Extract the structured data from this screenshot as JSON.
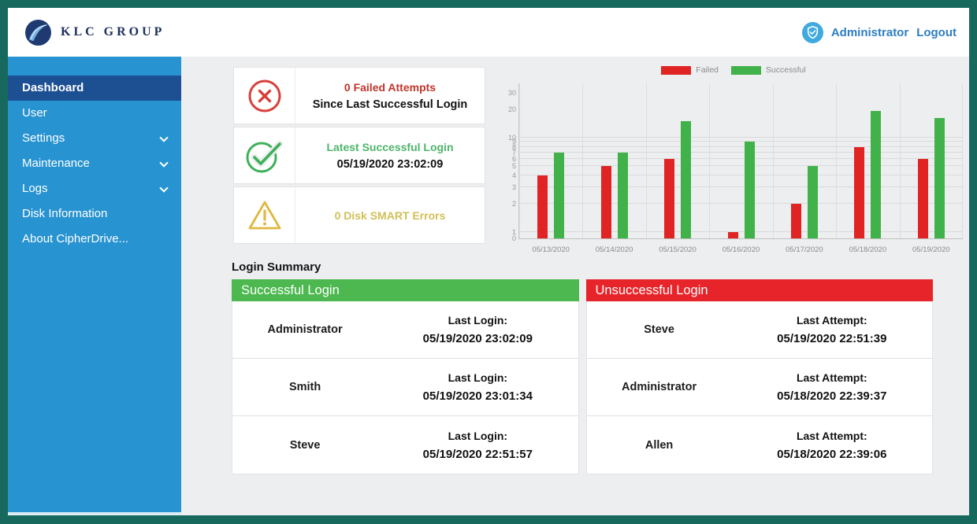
{
  "header": {
    "brand": "KLC GROUP",
    "user_label": "Administrator",
    "logout_label": "Logout"
  },
  "sidebar": {
    "active_item": "Dashboard",
    "items": [
      {
        "label": "Dashboard",
        "expandable": false
      },
      {
        "label": "User",
        "expandable": false
      },
      {
        "label": "Settings",
        "expandable": true
      },
      {
        "label": "Maintenance",
        "expandable": true
      },
      {
        "label": "Logs",
        "expandable": true
      },
      {
        "label": "Disk Information",
        "expandable": false
      },
      {
        "label": "About CipherDrive...",
        "expandable": false
      }
    ]
  },
  "status_cards": [
    {
      "icon": "failed-attempts-icon",
      "line1": "0 Failed Attempts",
      "line2": "Since Last Successful Login",
      "accent": "#c2342b"
    },
    {
      "icon": "successful-login-icon",
      "line1": "Latest Successful Login",
      "line2": "05/19/2020 23:02:09",
      "accent": "#4db56a"
    },
    {
      "icon": "disk-smart-warning-icon",
      "line1": "0 Disk SMART Errors",
      "line2": "",
      "accent": "#d2bf55"
    }
  ],
  "chart_data": {
    "type": "bar",
    "title": "",
    "xlabel": "",
    "ylabel": "",
    "y_scale": "log",
    "legend_position": "top",
    "grid": true,
    "categories": [
      "05/13/2020",
      "05/14/2020",
      "05/15/2020",
      "05/16/2020",
      "05/17/2020",
      "05/18/2020",
      "05/19/2020"
    ],
    "series": [
      {
        "name": "Failed",
        "color": "#e02424",
        "values": [
          4,
          5,
          6,
          1,
          2,
          8,
          6
        ]
      },
      {
        "name": "Successful",
        "color": "#41b249",
        "values": [
          7,
          7,
          15,
          9,
          5,
          19,
          16
        ]
      }
    ],
    "y_ticks": [
      30,
      20,
      10,
      9,
      8,
      7,
      6,
      5,
      4,
      3,
      2,
      1,
      0
    ]
  },
  "login_summary": {
    "title": "Login Summary",
    "tables": [
      {
        "header": "Successful Login",
        "header_color": "#4cb84f",
        "rows": [
          {
            "name": "Administrator",
            "label": "Last Login:",
            "datetime": "05/19/2020 23:02:09"
          },
          {
            "name": "Smith",
            "label": "Last Login:",
            "datetime": "05/19/2020 23:01:34"
          },
          {
            "name": "Steve",
            "label": "Last Login:",
            "datetime": "05/19/2020 22:51:57"
          }
        ]
      },
      {
        "header": "Unsuccessful Login",
        "header_color": "#e8242b",
        "rows": [
          {
            "name": "Steve",
            "label": "Last Attempt:",
            "datetime": "05/19/2020 22:51:39"
          },
          {
            "name": "Administrator",
            "label": "Last Attempt:",
            "datetime": "05/18/2020 22:39:37"
          },
          {
            "name": "Allen",
            "label": "Last Attempt:",
            "datetime": "05/18/2020 22:39:06"
          }
        ]
      }
    ]
  }
}
